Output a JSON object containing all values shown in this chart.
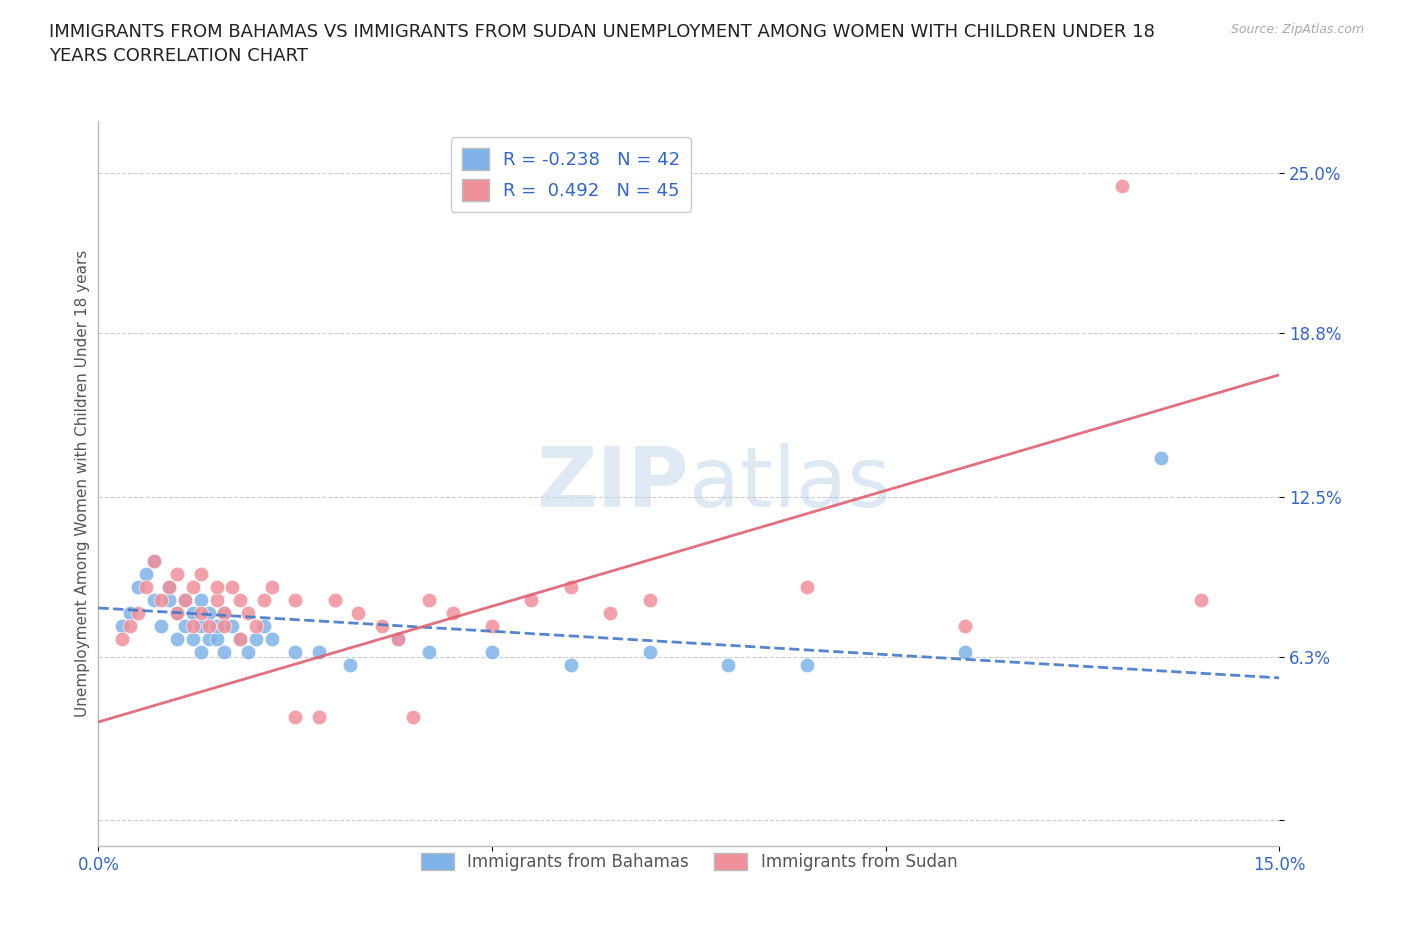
{
  "title": "IMMIGRANTS FROM BAHAMAS VS IMMIGRANTS FROM SUDAN UNEMPLOYMENT AMONG WOMEN WITH CHILDREN UNDER 18\nYEARS CORRELATION CHART",
  "source": "Source: ZipAtlas.com",
  "ylabel": "Unemployment Among Women with Children Under 18 years",
  "xlabel": "",
  "xlim": [
    0.0,
    0.15
  ],
  "ylim": [
    -0.01,
    0.27
  ],
  "xticks": [
    0.0,
    0.05,
    0.1,
    0.15
  ],
  "xtick_labels": [
    "0.0%",
    "",
    "",
    "15.0%"
  ],
  "ytick_positions": [
    0.0,
    0.063,
    0.125,
    0.188,
    0.25
  ],
  "ytick_labels": [
    "",
    "6.3%",
    "12.5%",
    "18.8%",
    "25.0%"
  ],
  "grid_color": "#cccccc",
  "background_color": "#ffffff",
  "bahamas_color": "#7fb3e8",
  "sudan_color": "#f0909a",
  "bahamas_R": -0.238,
  "bahamas_N": 42,
  "sudan_R": 0.492,
  "sudan_N": 45,
  "bahamas_line_color": "#4477cc",
  "sudan_line_color": "#e06070",
  "bahamas_x": [
    0.003,
    0.004,
    0.005,
    0.006,
    0.007,
    0.007,
    0.008,
    0.009,
    0.009,
    0.01,
    0.01,
    0.011,
    0.011,
    0.012,
    0.012,
    0.013,
    0.013,
    0.013,
    0.014,
    0.014,
    0.015,
    0.015,
    0.016,
    0.016,
    0.017,
    0.018,
    0.019,
    0.02,
    0.021,
    0.022,
    0.025,
    0.028,
    0.032,
    0.038,
    0.042,
    0.05,
    0.06,
    0.07,
    0.08,
    0.09,
    0.11,
    0.135
  ],
  "bahamas_y": [
    0.075,
    0.08,
    0.09,
    0.095,
    0.085,
    0.1,
    0.075,
    0.085,
    0.09,
    0.07,
    0.08,
    0.075,
    0.085,
    0.07,
    0.08,
    0.065,
    0.075,
    0.085,
    0.07,
    0.08,
    0.07,
    0.075,
    0.065,
    0.08,
    0.075,
    0.07,
    0.065,
    0.07,
    0.075,
    0.07,
    0.065,
    0.065,
    0.06,
    0.07,
    0.065,
    0.065,
    0.06,
    0.065,
    0.06,
    0.06,
    0.065,
    0.14
  ],
  "sudan_x": [
    0.003,
    0.004,
    0.005,
    0.006,
    0.007,
    0.008,
    0.009,
    0.01,
    0.01,
    0.011,
    0.012,
    0.012,
    0.013,
    0.013,
    0.014,
    0.015,
    0.015,
    0.016,
    0.016,
    0.017,
    0.018,
    0.018,
    0.019,
    0.02,
    0.021,
    0.022,
    0.025,
    0.025,
    0.028,
    0.03,
    0.033,
    0.036,
    0.038,
    0.04,
    0.042,
    0.045,
    0.05,
    0.055,
    0.06,
    0.065,
    0.07,
    0.09,
    0.11,
    0.13,
    0.14
  ],
  "sudan_y": [
    0.07,
    0.075,
    0.08,
    0.09,
    0.1,
    0.085,
    0.09,
    0.08,
    0.095,
    0.085,
    0.075,
    0.09,
    0.08,
    0.095,
    0.075,
    0.085,
    0.09,
    0.08,
    0.075,
    0.09,
    0.085,
    0.07,
    0.08,
    0.075,
    0.085,
    0.09,
    0.085,
    0.04,
    0.04,
    0.085,
    0.08,
    0.075,
    0.07,
    0.04,
    0.085,
    0.08,
    0.075,
    0.085,
    0.09,
    0.08,
    0.085,
    0.09,
    0.075,
    0.245,
    0.085
  ],
  "bahamas_line_x": [
    0.0,
    0.15
  ],
  "bahamas_line_y": [
    0.082,
    0.055
  ],
  "sudan_line_x": [
    0.0,
    0.15
  ],
  "sudan_line_y": [
    0.038,
    0.172
  ]
}
